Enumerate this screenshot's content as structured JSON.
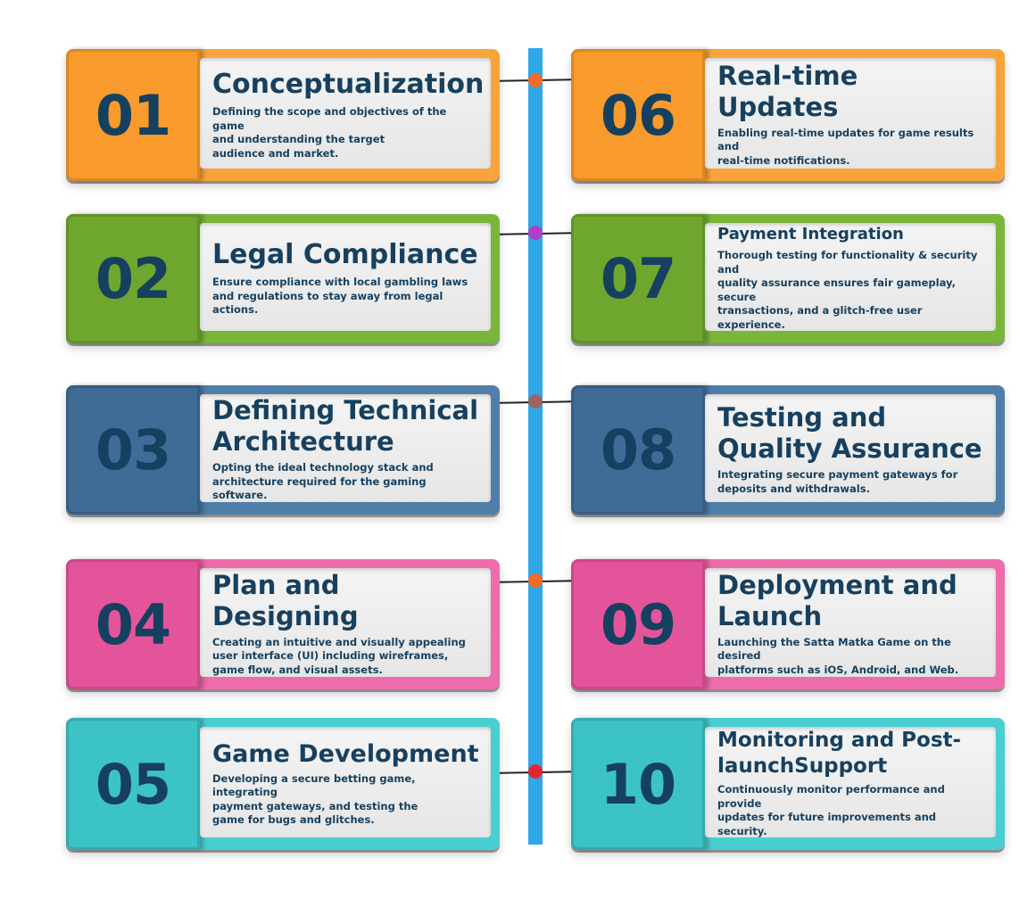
{
  "steps": [
    {
      "num": "01",
      "title": "Conceptualization",
      "desc": "Defining the scope and objectives of the game\nand understanding the target\naudience and market.",
      "color": "#f9a43a"
    },
    {
      "num": "02",
      "title": "Legal Compliance",
      "desc": "Ensure compliance with local gambling laws\nand  regulations to stay away from legal actions.",
      "color": "#7ab63a"
    },
    {
      "num": "03",
      "title": "Defining Technical Architecture",
      "desc": "Opting the ideal technology stack and\narchitecture required for the gaming software.",
      "color": "#4f7fa9"
    },
    {
      "num": "04",
      "title": "Plan and Designing",
      "desc": "Creating an intuitive and visually appealing\nuser interface (UI) including wireframes,\ngame flow, and visual assets.",
      "color": "#ee6cab"
    },
    {
      "num": "05",
      "title": "Game Development",
      "desc": "Developing a secure betting game, integrating\npayment gateways, and testing the\ngame for bugs and glitches.",
      "color": "#49cfd1"
    },
    {
      "num": "06",
      "title": "Real-time Updates",
      "desc": "Enabling real-time updates for game results and\nreal-time  notifications.",
      "color": "#f9a43a"
    },
    {
      "num": "07",
      "title": "Payment Integration",
      "desc": "Thorough testing for functionality & security and\nquality assurance ensures fair gameplay, secure\ntransactions, and a glitch-free user experience.",
      "color": "#7ab63a"
    },
    {
      "num": "08",
      "title": "Testing and Quality Assurance",
      "desc": "Integrating secure payment gateways for\ndeposits and withdrawals.",
      "color": "#4f7fa9"
    },
    {
      "num": "09",
      "title": "Deployment and Launch",
      "desc": "Launching the Satta Matka Game on the desired\nplatforms such as iOS, Android, and Web.",
      "color": "#ee6cab"
    },
    {
      "num": "10",
      "title": "Monitoring and Post-launchSupport",
      "desc": "Continuously monitor performance and provide\n updates for future improvements and security.",
      "color": "#49cfd1"
    }
  ],
  "connector_dots": [
    "#f26b2a",
    "#b23fc8",
    "#9e6464",
    "#f26b2a",
    "#e3262e"
  ]
}
